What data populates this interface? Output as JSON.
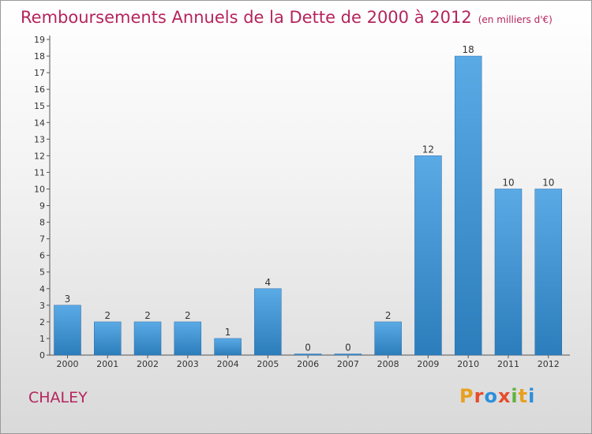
{
  "title": "Remboursements Annuels de la Dette de 2000 à 2012",
  "subtitle": "(en milliers d'€)",
  "city": "CHALEY",
  "logo": "Proxiti",
  "colors": {
    "title": "#b5245c",
    "bar_top": "#5aaae6",
    "bar_bottom": "#2c7dbb",
    "logo_letters": [
      "#e8a020",
      "#e74c2a",
      "#2c8fdb",
      "#e74c2a",
      "#5fb33d",
      "#e8a020",
      "#2c8fdb"
    ]
  },
  "chart_data": {
    "type": "bar",
    "title": "Remboursements Annuels de la Dette de 2000 à 2012",
    "subtitle": "(en milliers d'€)",
    "categories": [
      "2000",
      "2001",
      "2002",
      "2003",
      "2004",
      "2005",
      "2006",
      "2007",
      "2008",
      "2009",
      "2010",
      "2011",
      "2012"
    ],
    "values": [
      3,
      2,
      2,
      2,
      1,
      4,
      0,
      0,
      2,
      12,
      18,
      10,
      10
    ],
    "data_labels": [
      "3",
      "2",
      "2",
      "2",
      "1",
      "4",
      "0",
      "0",
      "2",
      "12",
      "18",
      "10",
      "10"
    ],
    "ylim": [
      0,
      19
    ],
    "yticks": [
      "0",
      "1",
      "2",
      "3",
      "4",
      "5",
      "6",
      "7",
      "8",
      "9",
      "10",
      "11",
      "12",
      "13",
      "14",
      "15",
      "16",
      "17",
      "18",
      "19"
    ],
    "grid": false,
    "legend": "none"
  }
}
